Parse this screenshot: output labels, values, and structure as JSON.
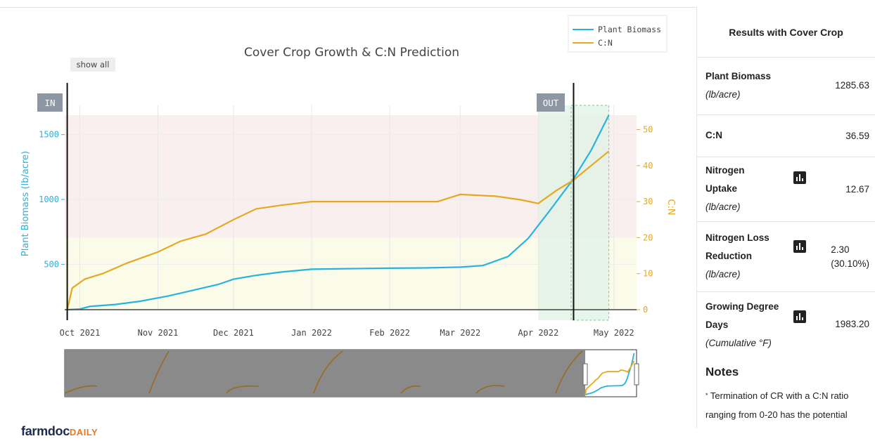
{
  "chart_data": {
    "type": "line",
    "title": "Cover Crop Growth & C:N Prediction",
    "ylabel_left": "Plant Biomass (lb/acre)",
    "ylabel_right": "C:N",
    "x_ticks": [
      "Oct 2021",
      "Nov 2021",
      "Dec 2021",
      "Jan 2022",
      "Feb 2022",
      "Mar 2022",
      "Apr 2022",
      "May 2022"
    ],
    "y_left_ticks": [
      500,
      1000,
      1500
    ],
    "y_right_ticks": [
      0,
      10,
      20,
      30,
      40,
      50
    ],
    "ylim_left": [
      150,
      1650
    ],
    "ylim_right": [
      0,
      54
    ],
    "xlim": [
      "2021-09-25",
      "2022-05-10"
    ],
    "legend_position": "top-right",
    "button_show_all": "show all",
    "marker_in": "IN",
    "marker_out": "OUT",
    "marker_in_date": "2021-09-26",
    "marker_out_date": "2022-04-15",
    "highlight_range": [
      "2022-04-01",
      "2022-04-29"
    ],
    "bands_right_axis": [
      {
        "range": [
          0,
          20
        ],
        "color": "#fbfbe9"
      },
      {
        "range": [
          20,
          54
        ],
        "color": "#f9efef"
      }
    ],
    "series": [
      {
        "name": "Plant Biomass",
        "axis": "left",
        "color": "#29b2dd",
        "points": [
          [
            "2021-09-26",
            150
          ],
          [
            "2021-10-01",
            155
          ],
          [
            "2021-10-05",
            175
          ],
          [
            "2021-10-15",
            190
          ],
          [
            "2021-10-25",
            215
          ],
          [
            "2021-11-05",
            255
          ],
          [
            "2021-11-15",
            300
          ],
          [
            "2021-11-25",
            345
          ],
          [
            "2021-12-01",
            385
          ],
          [
            "2021-12-10",
            415
          ],
          [
            "2021-12-20",
            440
          ],
          [
            "2022-01-01",
            462
          ],
          [
            "2022-01-15",
            466
          ],
          [
            "2022-02-01",
            470
          ],
          [
            "2022-02-15",
            472
          ],
          [
            "2022-03-01",
            478
          ],
          [
            "2022-03-10",
            490
          ],
          [
            "2022-03-20",
            560
          ],
          [
            "2022-03-28",
            700
          ],
          [
            "2022-04-05",
            900
          ],
          [
            "2022-04-15",
            1160
          ],
          [
            "2022-04-22",
            1380
          ],
          [
            "2022-04-29",
            1650
          ]
        ]
      },
      {
        "name": "C:N",
        "axis": "right",
        "color": "#e6a820",
        "points": [
          [
            "2021-09-26",
            0
          ],
          [
            "2021-09-28",
            6
          ],
          [
            "2021-10-03",
            8.5
          ],
          [
            "2021-10-10",
            10
          ],
          [
            "2021-10-20",
            13
          ],
          [
            "2021-11-01",
            16
          ],
          [
            "2021-11-10",
            19
          ],
          [
            "2021-11-20",
            21
          ],
          [
            "2021-12-01",
            25
          ],
          [
            "2021-12-10",
            28
          ],
          [
            "2021-12-20",
            29
          ],
          [
            "2022-01-01",
            30
          ],
          [
            "2022-01-15",
            30
          ],
          [
            "2022-02-01",
            30
          ],
          [
            "2022-02-20",
            30
          ],
          [
            "2022-03-01",
            32
          ],
          [
            "2022-03-15",
            31.5
          ],
          [
            "2022-03-25",
            30.5
          ],
          [
            "2022-04-01",
            29.5
          ],
          [
            "2022-04-08",
            33
          ],
          [
            "2022-04-15",
            36
          ],
          [
            "2022-04-22",
            40
          ],
          [
            "2022-04-29",
            44
          ]
        ]
      }
    ]
  },
  "panel": {
    "title": "Results with Cover Crop",
    "rows": [
      {
        "name": "Plant Biomass",
        "unit": "(lb/acre)",
        "value": "1285.63",
        "sub": ""
      },
      {
        "name": "C:N",
        "unit": "",
        "value": "36.59",
        "sub": ""
      },
      {
        "name_1": "Nitrogen",
        "name_2": "Uptake",
        "unit": "(lb/acre)",
        "value": "12.67",
        "sub": "",
        "icon": "bar-chart-icon"
      },
      {
        "name_1": "Nitrogen Loss",
        "name_2": "Reduction",
        "unit": "(lb/acre)",
        "value": "2.30",
        "sub": "(30.10%)",
        "icon": "bar-chart-icon"
      },
      {
        "name_1": "Growing Degree",
        "name_2": "Days",
        "unit": "(Cumulative °F)",
        "value": "1983.20",
        "sub": "",
        "icon": "bar-chart-icon"
      }
    ],
    "notes_title": "Notes",
    "notes_marker": "*",
    "notes_text": " Termination of CR with a C:N ratio ranging from 0-20 has the potential"
  },
  "logo": {
    "part1": "farmdoc",
    "part2": "DAILY"
  }
}
